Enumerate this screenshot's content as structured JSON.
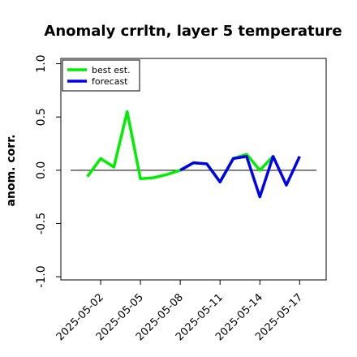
{
  "chart_data": {
    "type": "line",
    "title": "Anomaly crrltn, layer 5 temperature",
    "ylabel": "anom. corr.",
    "x": [
      "2025-05-01",
      "2025-05-02",
      "2025-05-03",
      "2025-05-04",
      "2025-05-05",
      "2025-05-06",
      "2025-05-07",
      "2025-05-08",
      "2025-05-09",
      "2025-05-10",
      "2025-05-11",
      "2025-05-12",
      "2025-05-13",
      "2025-05-14",
      "2025-05-15",
      "2025-05-16",
      "2025-05-17"
    ],
    "series": [
      {
        "name": "best est.",
        "color": "#00ee00",
        "values": [
          -0.06,
          0.11,
          0.03,
          0.55,
          -0.08,
          -0.07,
          -0.04,
          0.0,
          0.07,
          0.06,
          -0.11,
          0.11,
          0.15,
          0.0,
          0.13,
          null,
          null
        ]
      },
      {
        "name": "forecast",
        "color": "#0000ee",
        "values": [
          null,
          null,
          null,
          null,
          null,
          null,
          null,
          0.0,
          0.07,
          0.06,
          -0.11,
          0.11,
          0.13,
          -0.25,
          0.13,
          -0.14,
          0.13
        ]
      }
    ],
    "xlim": [
      "2025-04-29",
      "2025-05-19"
    ],
    "xticks": [
      "2025-05-02",
      "2025-05-05",
      "2025-05-08",
      "2025-05-11",
      "2025-05-14",
      "2025-05-17"
    ],
    "highlight_tick": "2025-05-08",
    "highlight_color": "#228b22",
    "ylim": [
      -1.03,
      1.05
    ],
    "yticks": [
      {
        "value": -1,
        "label": "-1.0"
      },
      {
        "value": -0.5,
        "label": "-0.5"
      },
      {
        "value": 0,
        "label": "0.0"
      },
      {
        "value": 0.5,
        "label": "0.5"
      },
      {
        "value": 1,
        "label": "1.0"
      }
    ],
    "hline": 0,
    "legend": "upper left"
  }
}
